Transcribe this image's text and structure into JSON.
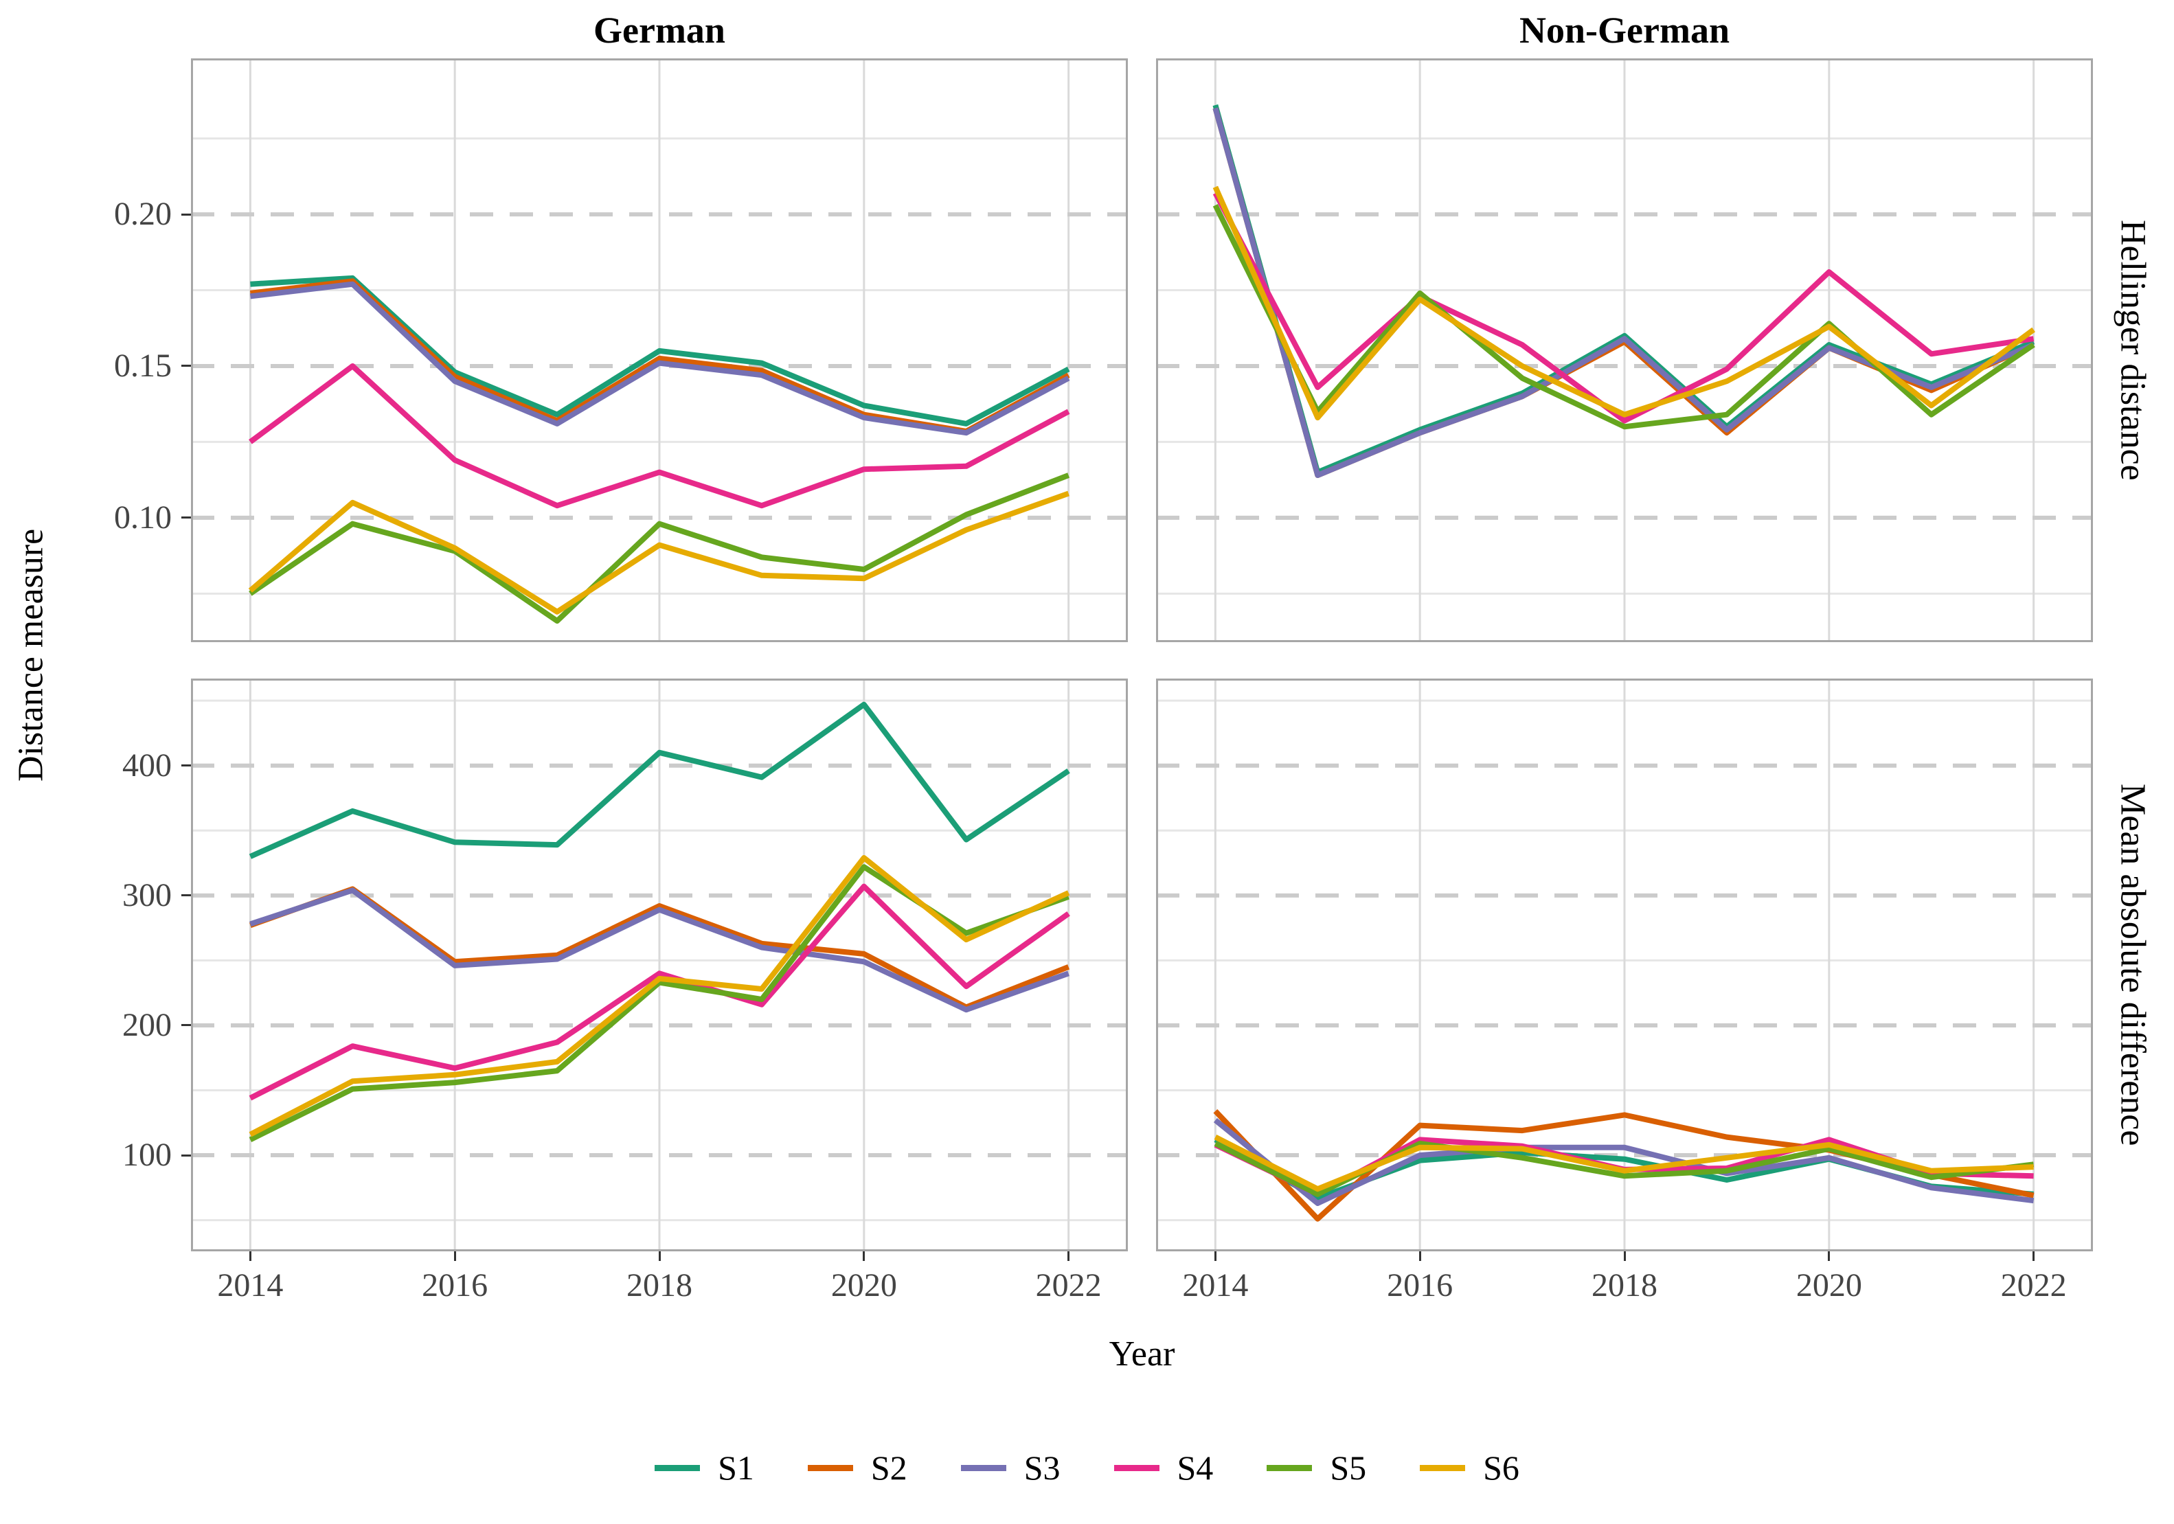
{
  "figure": {
    "col_titles": [
      "German",
      "Non-German"
    ],
    "row_titles": [
      "Hellinger distance",
      "Mean absolute difference"
    ],
    "xlabel": "Year",
    "ylabel": "Distance measure"
  },
  "chart_data": {
    "type": "line",
    "x": [
      2014,
      2015,
      2016,
      2017,
      2018,
      2019,
      2020,
      2021,
      2022
    ],
    "x_ticks": [
      2014,
      2016,
      2018,
      2020,
      2022
    ],
    "facet_columns": [
      "German",
      "Non-German"
    ],
    "facet_rows": [
      "Hellinger distance",
      "Mean absolute difference"
    ],
    "legend_position": "bottom",
    "grid": "dashed lines at labeled ticks, solid minor gridlines between",
    "series_names": [
      "S1",
      "S2",
      "S3",
      "S4",
      "S5",
      "S6"
    ],
    "series_colors": {
      "S1": "#1B9E77",
      "S2": "#D95F02",
      "S3": "#7570B3",
      "S4": "#E7298A",
      "S5": "#66A61E",
      "S6": "#E6AB02"
    },
    "rows": [
      {
        "label": "Hellinger distance",
        "ylim": [
          0.059,
          0.2514
        ],
        "yticks": [
          0.1,
          0.15,
          0.2
        ],
        "ytick_labels": [
          "0.10",
          "0.15",
          "0.20"
        ]
      },
      {
        "label": "Mean absolute difference",
        "ylim": [
          26,
          467
        ],
        "yticks": [
          100,
          200,
          300,
          400
        ],
        "ytick_labels": [
          "100",
          "200",
          "300",
          "400"
        ]
      }
    ],
    "panels": [
      {
        "col": "German",
        "row": "Hellinger distance",
        "series": [
          {
            "name": "S1",
            "values": [
              0.177,
              0.179,
              0.148,
              0.134,
              0.155,
              0.151,
              0.137,
              0.131,
              0.149
            ]
          },
          {
            "name": "S2",
            "values": [
              0.174,
              0.178,
              0.1465,
              0.132,
              0.1525,
              0.1485,
              0.134,
              0.1285,
              0.147
            ]
          },
          {
            "name": "S3",
            "values": [
              0.173,
              0.177,
              0.145,
              0.131,
              0.151,
              0.147,
              0.133,
              0.128,
              0.146
            ]
          },
          {
            "name": "S4",
            "values": [
              0.125,
              0.15,
              0.119,
              0.104,
              0.115,
              0.104,
              0.116,
              0.117,
              0.135
            ]
          },
          {
            "name": "S5",
            "values": [
              0.075,
              0.098,
              0.089,
              0.066,
              0.098,
              0.087,
              0.083,
              0.101,
              0.114
            ]
          },
          {
            "name": "S6",
            "values": [
              0.076,
              0.105,
              0.09,
              0.069,
              0.091,
              0.081,
              0.08,
              0.096,
              0.108
            ]
          }
        ]
      },
      {
        "col": "Non-German",
        "row": "Hellinger distance",
        "series": [
          {
            "name": "S1",
            "values": [
              0.236,
              0.115,
              0.129,
              0.141,
              0.16,
              0.13,
              0.157,
              0.144,
              0.158
            ]
          },
          {
            "name": "S2",
            "values": [
              0.235,
              0.114,
              0.128,
              0.14,
              0.158,
              0.128,
              0.156,
              0.142,
              0.157
            ]
          },
          {
            "name": "S3",
            "values": [
              0.235,
              0.114,
              0.128,
              0.14,
              0.159,
              0.129,
              0.156,
              0.143,
              0.157
            ]
          },
          {
            "name": "S4",
            "values": [
              0.207,
              0.143,
              0.173,
              0.157,
              0.132,
              0.149,
              0.181,
              0.154,
              0.159
            ]
          },
          {
            "name": "S5",
            "values": [
              0.203,
              0.135,
              0.174,
              0.146,
              0.13,
              0.134,
              0.164,
              0.134,
              0.157
            ]
          },
          {
            "name": "S6",
            "values": [
              0.209,
              0.133,
              0.172,
              0.15,
              0.134,
              0.145,
              0.163,
              0.137,
              0.162
            ]
          }
        ]
      },
      {
        "col": "German",
        "row": "Mean absolute difference",
        "series": [
          {
            "name": "S1",
            "values": [
              330,
              365,
              341,
              339,
              410,
              391,
              447,
              343,
              396
            ]
          },
          {
            "name": "S2",
            "values": [
              277,
              305,
              249,
              254,
              292,
              263,
              255,
              214,
              245
            ]
          },
          {
            "name": "S3",
            "values": [
              278,
              304,
              246,
              251,
              289,
              260,
              249,
              212,
              240
            ]
          },
          {
            "name": "S4",
            "values": [
              144,
              184,
              167,
              187,
              240,
              216,
              307,
              230,
              286
            ]
          },
          {
            "name": "S5",
            "values": [
              112,
              151,
              156,
              165,
              233,
              220,
              322,
              271,
              299
            ]
          },
          {
            "name": "S6",
            "values": [
              116,
              157,
              162,
              172,
              236,
              228,
              329,
              266,
              302
            ]
          }
        ]
      },
      {
        "col": "Non-German",
        "row": "Mean absolute difference",
        "series": [
          {
            "name": "S1",
            "values": [
              112,
              67,
              96,
              102,
              97,
              81,
              97,
              76,
              70
            ]
          },
          {
            "name": "S2",
            "values": [
              134,
              51,
              123,
              119,
              131,
              114,
              104,
              85,
              69
            ]
          },
          {
            "name": "S3",
            "values": [
              127,
              63,
              100,
              106,
              106,
              86,
              98,
              75,
              65
            ]
          },
          {
            "name": "S4",
            "values": [
              108,
              70,
              112,
              107,
              89,
              90,
              112,
              86,
              84
            ]
          },
          {
            "name": "S5",
            "values": [
              109,
              70,
              109,
              98,
              84,
              88,
              105,
              83,
              93
            ]
          },
          {
            "name": "S6",
            "values": [
              114,
              74,
              106,
              105,
              88,
              98,
              108,
              88,
              91
            ]
          }
        ]
      }
    ],
    "legend": [
      "S1",
      "S2",
      "S3",
      "S4",
      "S5",
      "S6"
    ]
  }
}
